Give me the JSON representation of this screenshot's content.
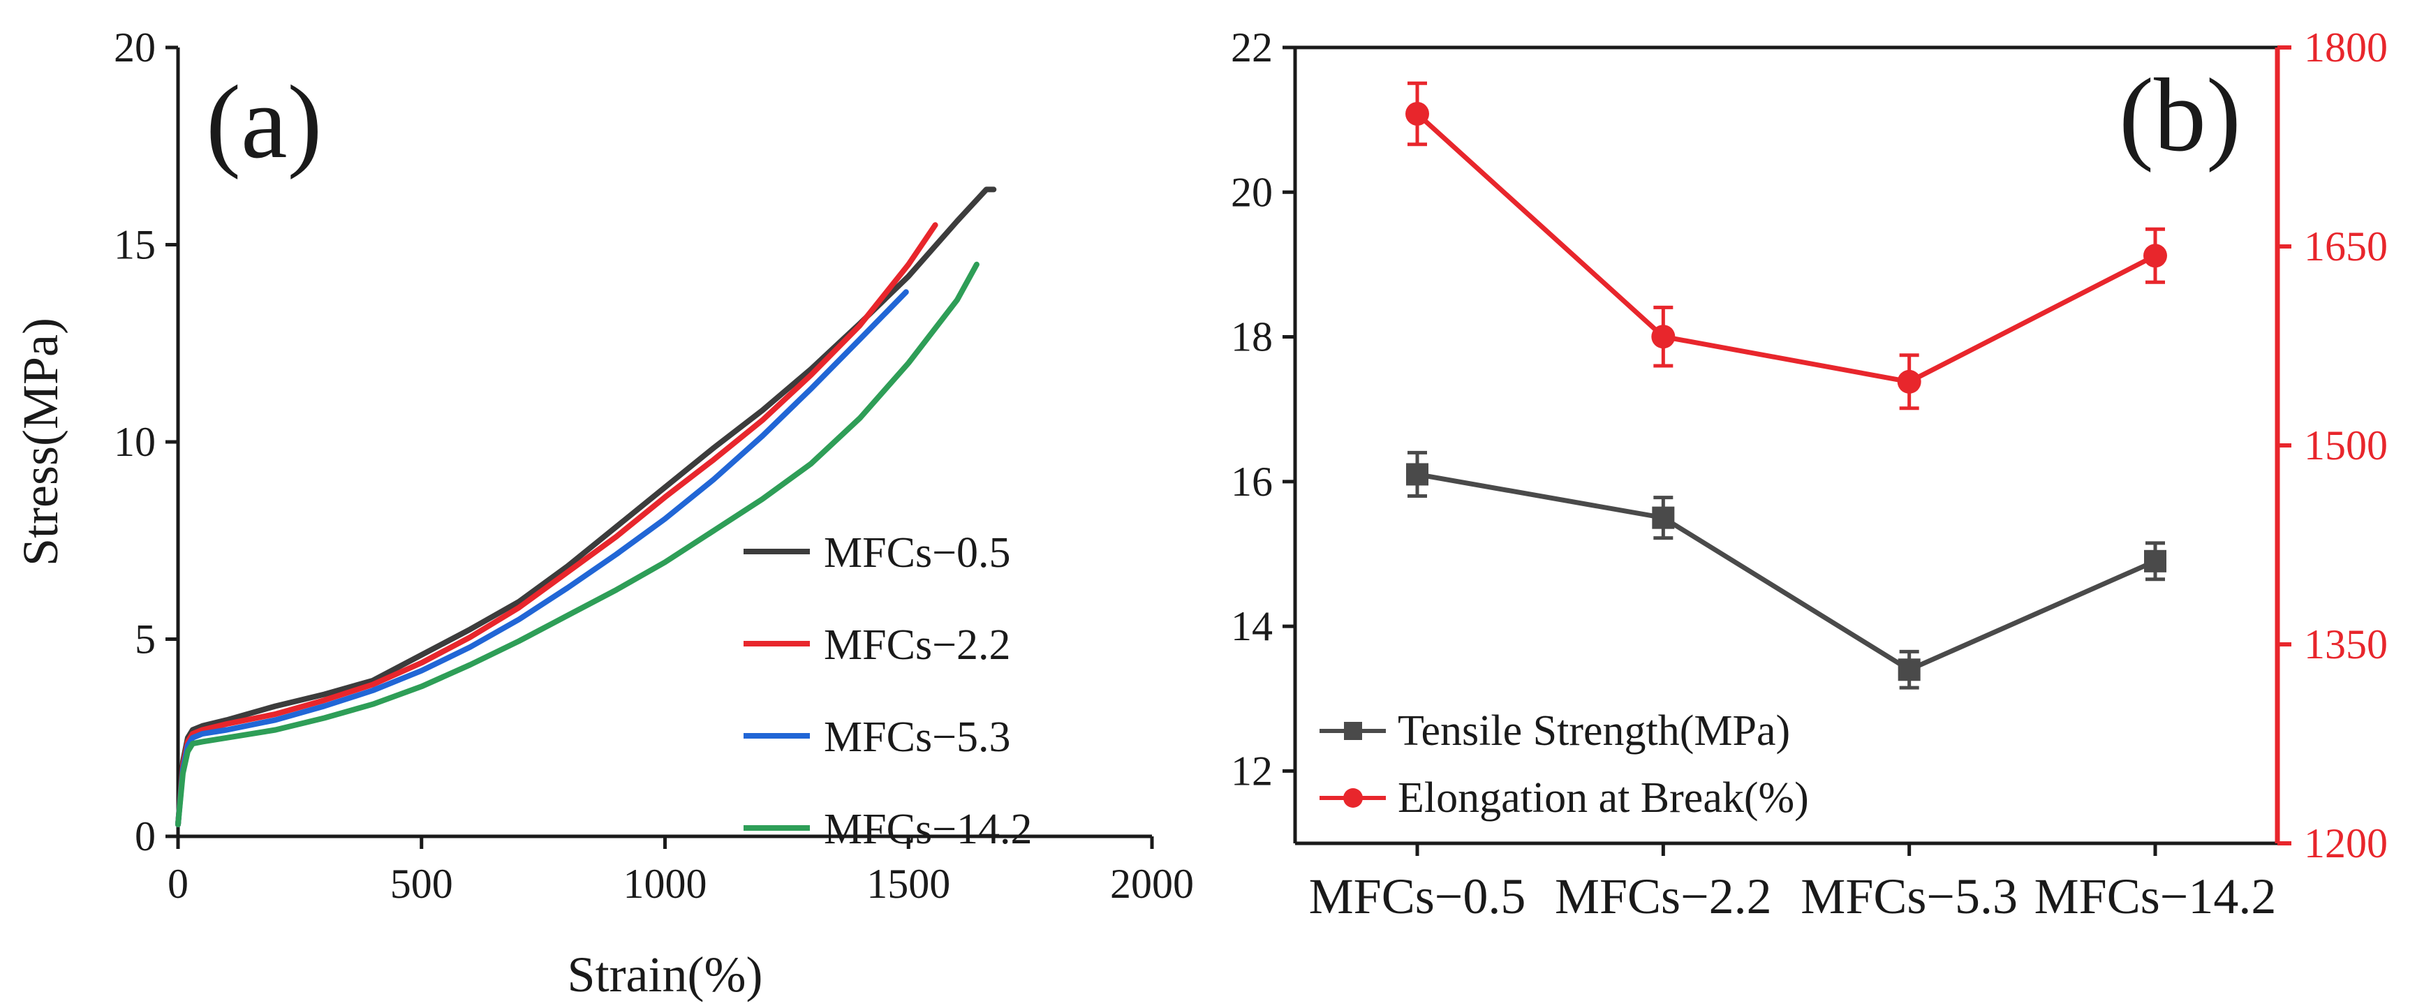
{
  "chart_data": [
    {
      "panel": "(a)",
      "type": "line",
      "xlabel": "Strain(%)",
      "ylabel": "Stress(MPa)",
      "xlim": [
        0,
        2000
      ],
      "ylim": [
        0,
        20
      ],
      "xticks": [
        0,
        500,
        1000,
        1500,
        2000
      ],
      "yticks": [
        0,
        5,
        10,
        15,
        20
      ],
      "legend_position": "bottom-right",
      "series": [
        {
          "name": "MFCs−0.5",
          "color": "#3c3c3c",
          "points": [
            [
              0,
              0.3
            ],
            [
              10,
              1.9
            ],
            [
              20,
              2.5
            ],
            [
              30,
              2.7
            ],
            [
              50,
              2.8
            ],
            [
              100,
              2.95
            ],
            [
              200,
              3.3
            ],
            [
              300,
              3.6
            ],
            [
              400,
              3.95
            ],
            [
              500,
              4.6
            ],
            [
              600,
              5.25
            ],
            [
              700,
              5.95
            ],
            [
              800,
              6.85
            ],
            [
              900,
              7.85
            ],
            [
              1000,
              8.85
            ],
            [
              1100,
              9.85
            ],
            [
              1200,
              10.8
            ],
            [
              1300,
              11.85
            ],
            [
              1400,
              13.0
            ],
            [
              1500,
              14.2
            ],
            [
              1600,
              15.6
            ],
            [
              1660,
              16.4
            ],
            [
              1675,
              16.4
            ]
          ]
        },
        {
          "name": "MFCs−2.2",
          "color": "#e8262c",
          "points": [
            [
              0,
              0.3
            ],
            [
              10,
              1.8
            ],
            [
              20,
              2.4
            ],
            [
              30,
              2.6
            ],
            [
              50,
              2.7
            ],
            [
              100,
              2.85
            ],
            [
              200,
              3.1
            ],
            [
              300,
              3.45
            ],
            [
              400,
              3.85
            ],
            [
              500,
              4.4
            ],
            [
              600,
              5.05
            ],
            [
              700,
              5.8
            ],
            [
              800,
              6.7
            ],
            [
              900,
              7.6
            ],
            [
              1000,
              8.6
            ],
            [
              1100,
              9.55
            ],
            [
              1200,
              10.55
            ],
            [
              1300,
              11.7
            ],
            [
              1400,
              12.95
            ],
            [
              1500,
              14.5
            ],
            [
              1555,
              15.5
            ]
          ]
        },
        {
          "name": "MFCs−5.3",
          "color": "#2166d6",
          "points": [
            [
              0,
              0.3
            ],
            [
              10,
              1.7
            ],
            [
              20,
              2.3
            ],
            [
              30,
              2.5
            ],
            [
              50,
              2.6
            ],
            [
              100,
              2.7
            ],
            [
              200,
              2.95
            ],
            [
              300,
              3.3
            ],
            [
              400,
              3.7
            ],
            [
              500,
              4.2
            ],
            [
              600,
              4.8
            ],
            [
              700,
              5.5
            ],
            [
              800,
              6.3
            ],
            [
              900,
              7.15
            ],
            [
              1000,
              8.05
            ],
            [
              1100,
              9.05
            ],
            [
              1200,
              10.15
            ],
            [
              1300,
              11.35
            ],
            [
              1400,
              12.6
            ],
            [
              1495,
              13.8
            ]
          ]
        },
        {
          "name": "MFCs−14.2",
          "color": "#2e9e57",
          "points": [
            [
              0,
              0.3
            ],
            [
              10,
              1.6
            ],
            [
              20,
              2.15
            ],
            [
              30,
              2.35
            ],
            [
              50,
              2.4
            ],
            [
              100,
              2.5
            ],
            [
              200,
              2.7
            ],
            [
              300,
              3.0
            ],
            [
              400,
              3.35
            ],
            [
              500,
              3.8
            ],
            [
              600,
              4.35
            ],
            [
              700,
              4.95
            ],
            [
              800,
              5.6
            ],
            [
              900,
              6.25
            ],
            [
              1000,
              6.95
            ],
            [
              1100,
              7.75
            ],
            [
              1200,
              8.55
            ],
            [
              1300,
              9.45
            ],
            [
              1400,
              10.6
            ],
            [
              1500,
              12.0
            ],
            [
              1600,
              13.6
            ],
            [
              1640,
              14.5
            ]
          ]
        }
      ]
    },
    {
      "panel": "(b)",
      "type": "line",
      "categories": [
        "MFCs−0.5",
        "MFCs−2.2",
        "MFCs−5.3",
        "MFCs−14.2"
      ],
      "ylim_left": [
        11,
        22
      ],
      "yticks_left": [
        12,
        14,
        16,
        18,
        20,
        22
      ],
      "ylim_right": [
        1200,
        1800
      ],
      "yticks_right": [
        1200,
        1350,
        1500,
        1650,
        1800
      ],
      "legend_position": "bottom-left",
      "series": [
        {
          "name": "Tensile Strength(MPa)",
          "axis": "left",
          "marker": "square",
          "color": "#4a4a4a",
          "values": [
            16.1,
            15.5,
            13.4,
            14.9
          ],
          "errors": [
            0.3,
            0.28,
            0.25,
            0.25
          ]
        },
        {
          "name": "Elongation at Break(%)",
          "axis": "right",
          "marker": "circle",
          "color": "#e8262c",
          "values": [
            1750,
            1582,
            1548,
            1643
          ],
          "errors": [
            23,
            22,
            20,
            20
          ]
        }
      ]
    }
  ]
}
